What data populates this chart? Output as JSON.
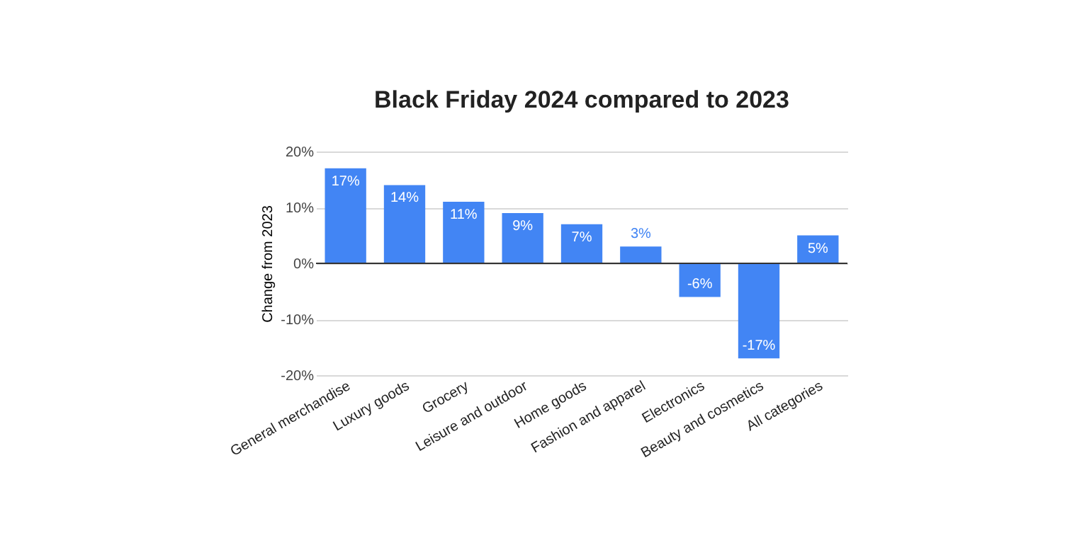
{
  "chart_data": {
    "type": "bar",
    "title": "Black Friday 2024 compared to 2023",
    "ylabel": "Change from 2023",
    "categories": [
      "General merchandise",
      "Luxury goods",
      "Grocery",
      "Leisure and outdoor",
      "Home goods",
      "Fashion and apparel",
      "Electronics",
      "Beauty and cosmetics",
      "All categories"
    ],
    "values": [
      17,
      14,
      11,
      9,
      7,
      3,
      -6,
      -17,
      5
    ],
    "value_labels": [
      "17%",
      "14%",
      "11%",
      "9%",
      "7%",
      "3%",
      "-6%",
      "-17%",
      "5%"
    ],
    "color": "#4285f4",
    "ylim": [
      -20,
      20
    ],
    "yticks": [
      {
        "value": -20,
        "label": "-20%"
      },
      {
        "value": -10,
        "label": "-10%"
      },
      {
        "value": 0,
        "label": "0%"
      },
      {
        "value": 10,
        "label": "10%"
      },
      {
        "value": 20,
        "label": "20%"
      }
    ],
    "grid": "y"
  }
}
